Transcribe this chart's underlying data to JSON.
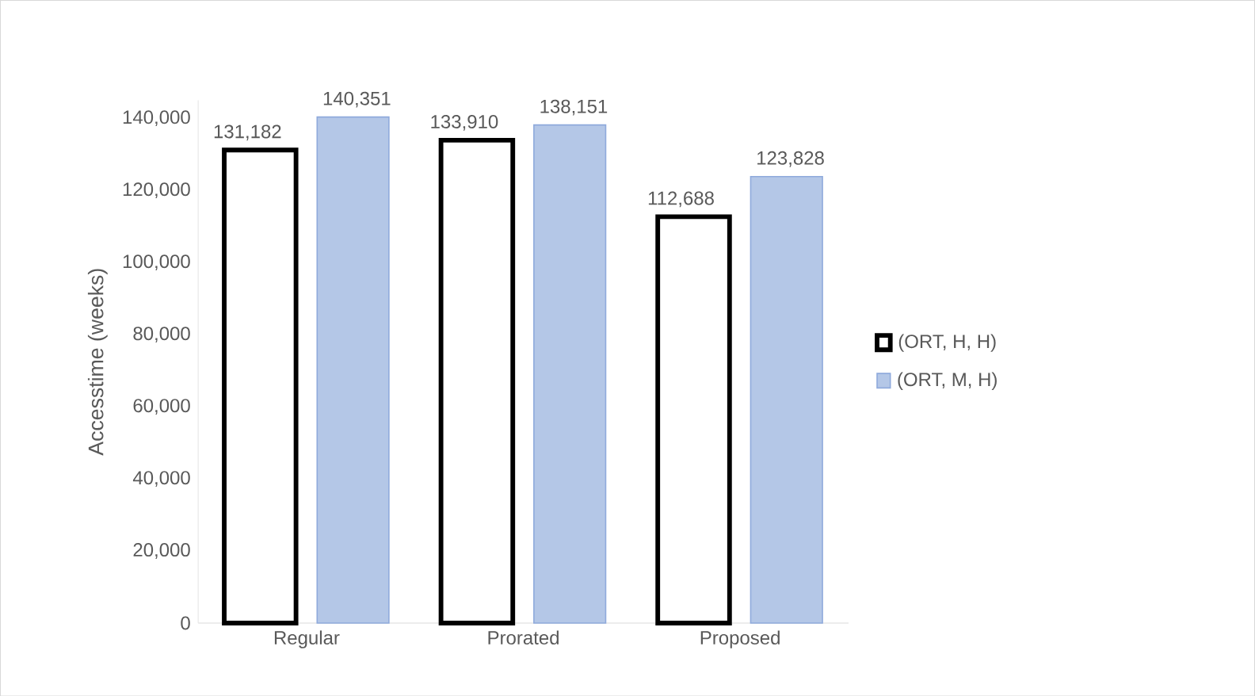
{
  "chart_data": {
    "type": "bar",
    "ylabel": "Accesstime (weeks)",
    "categories": [
      "Regular",
      "Prorated",
      "Proposed"
    ],
    "series": [
      {
        "name": "(ORT, H, H)",
        "color": "#ffffff",
        "values": [
          131182,
          133910,
          112688
        ],
        "value_labels": [
          "131,182",
          "133,910",
          "112,688"
        ]
      },
      {
        "name": "(ORT, M, H)",
        "color": "#b4c7e7",
        "values": [
          140351,
          138151,
          123828
        ],
        "value_labels": [
          "140,351",
          "138,151",
          "123,828"
        ]
      }
    ],
    "ylim": [
      0,
      145000
    ],
    "yticks": [
      {
        "value": 0,
        "label": "0"
      },
      {
        "value": 20000,
        "label": "20,000"
      },
      {
        "value": 40000,
        "label": "40,000"
      },
      {
        "value": 60000,
        "label": "60,000"
      },
      {
        "value": 80000,
        "label": "80,000"
      },
      {
        "value": 100000,
        "label": "100,000"
      },
      {
        "value": 120000,
        "label": "120,000"
      },
      {
        "value": 140000,
        "label": "140,000"
      }
    ],
    "legend": "right"
  }
}
